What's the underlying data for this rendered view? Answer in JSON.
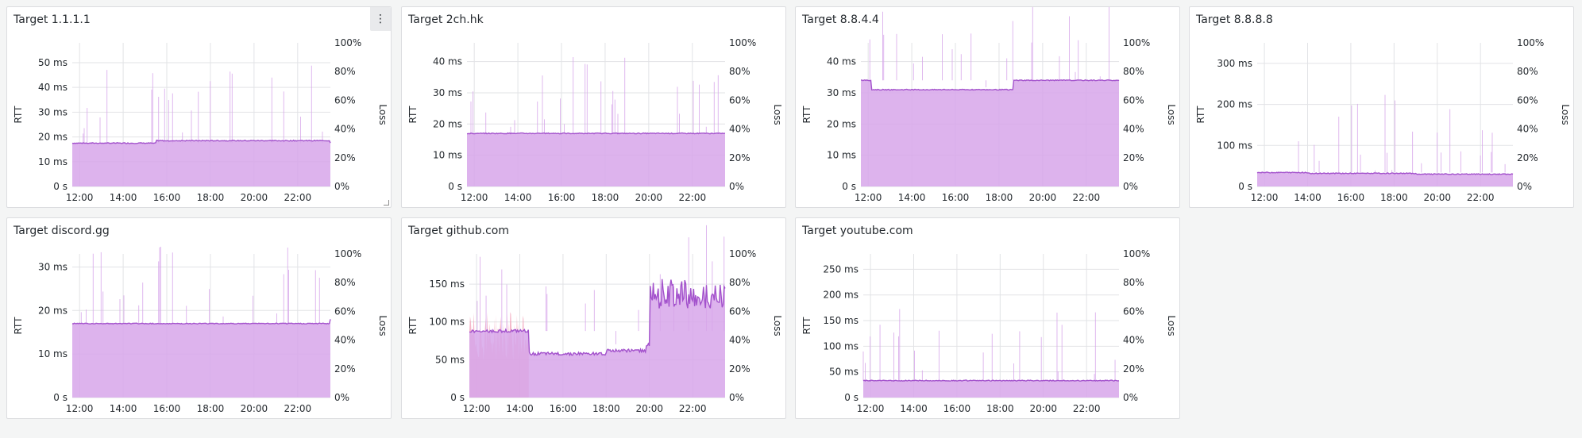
{
  "dashboard": {
    "panels": [
      {
        "title": "Target 1.1.1.1",
        "menu_icon": "⋮",
        "y_label": "RTT",
        "y2_label": "Loss",
        "y_ticks": [
          "0 s",
          "10 ms",
          "20 ms",
          "30 ms",
          "40 ms",
          "50 ms"
        ],
        "y2_ticks": [
          "0%",
          "20%",
          "40%",
          "60%",
          "80%",
          "100%"
        ],
        "x_ticks": [
          "12:00",
          "14:00",
          "16:00",
          "18:00",
          "20:00",
          "22:00"
        ],
        "y_max_ms": 58
      },
      {
        "title": "Target 2ch.hk",
        "y_label": "RTT",
        "y2_label": "Loss",
        "y_ticks": [
          "0 s",
          "10 ms",
          "20 ms",
          "30 ms",
          "40 ms"
        ],
        "y2_ticks": [
          "0%",
          "20%",
          "40%",
          "60%",
          "80%",
          "100%"
        ],
        "x_ticks": [
          "12:00",
          "14:00",
          "16:00",
          "18:00",
          "20:00",
          "22:00"
        ],
        "y_max_ms": 46
      },
      {
        "title": "Target 8.8.4.4",
        "y_label": "RTT",
        "y2_label": "Loss",
        "y_ticks": [
          "0 s",
          "10 ms",
          "20 ms",
          "30 ms",
          "40 ms"
        ],
        "y2_ticks": [
          "0%",
          "20%",
          "40%",
          "60%",
          "80%",
          "100%"
        ],
        "x_ticks": [
          "12:00",
          "14:00",
          "16:00",
          "18:00",
          "20:00",
          "22:00"
        ],
        "y_max_ms": 46
      },
      {
        "title": "Target 8.8.8.8",
        "y_label": "RTT",
        "y2_label": "Loss",
        "y_ticks": [
          "0 s",
          "100 ms",
          "200 ms",
          "300 ms"
        ],
        "y2_ticks": [
          "0%",
          "20%",
          "40%",
          "60%",
          "80%",
          "100%"
        ],
        "x_ticks": [
          "12:00",
          "14:00",
          "16:00",
          "18:00",
          "20:00",
          "22:00"
        ],
        "y_max_ms": 350
      },
      {
        "title": "Target discord.gg",
        "y_label": "RTT",
        "y2_label": "Loss",
        "y_ticks": [
          "0 s",
          "10 ms",
          "20 ms",
          "30 ms"
        ],
        "y2_ticks": [
          "0%",
          "20%",
          "40%",
          "60%",
          "80%",
          "100%"
        ],
        "x_ticks": [
          "12:00",
          "14:00",
          "16:00",
          "18:00",
          "20:00",
          "22:00"
        ],
        "y_max_ms": 33
      },
      {
        "title": "Target github.com",
        "y_label": "RTT",
        "y2_label": "Loss",
        "y_ticks": [
          "0 s",
          "50 ms",
          "100 ms",
          "150 ms"
        ],
        "y2_ticks": [
          "0%",
          "20%",
          "40%",
          "60%",
          "80%",
          "100%"
        ],
        "x_ticks": [
          "12:00",
          "14:00",
          "16:00",
          "18:00",
          "20:00",
          "22:00"
        ],
        "y_max_ms": 190
      },
      {
        "title": "Target youtube.com",
        "y_label": "RTT",
        "y2_label": "Loss",
        "y_ticks": [
          "0 s",
          "50 ms",
          "100 ms",
          "150 ms",
          "200 ms",
          "250 ms"
        ],
        "y2_ticks": [
          "0%",
          "20%",
          "40%",
          "60%",
          "80%",
          "100%"
        ],
        "x_ticks": [
          "12:00",
          "14:00",
          "16:00",
          "18:00",
          "20:00",
          "22:00"
        ],
        "y_max_ms": 280
      }
    ]
  },
  "chart_data": [
    {
      "type": "area",
      "title": "Target 1.1.1.1",
      "x": [
        "11:40",
        "15:00",
        "15:30",
        "23:30"
      ],
      "series": [
        {
          "values": [
            17.5,
            17.5,
            18.5,
            17.5
          ]
        }
      ],
      "ylim_ms": [
        0,
        58
      ],
      "y2lim_pct": [
        0,
        100
      ]
    },
    {
      "type": "area",
      "title": "Target 2ch.hk",
      "x": [
        "11:40",
        "23:30"
      ],
      "series": [
        {
          "values": [
            17,
            17
          ]
        }
      ],
      "ylim_ms": [
        0,
        46
      ],
      "y2lim_pct": [
        0,
        100
      ]
    },
    {
      "type": "area",
      "title": "Target 8.8.4.4",
      "x": [
        "11:40",
        "12:10",
        "18:40",
        "23:30"
      ],
      "series": [
        {
          "values": [
            34,
            31,
            34,
            34
          ]
        }
      ],
      "ylim_ms": [
        0,
        46
      ],
      "y2lim_pct": [
        0,
        100
      ]
    },
    {
      "type": "area",
      "title": "Target 8.8.8.8",
      "x": [
        "11:40",
        "14:00",
        "19:00",
        "23:30"
      ],
      "series": [
        {
          "values": [
            34,
            32,
            30,
            30
          ]
        }
      ],
      "ylim_ms": [
        0,
        350
      ],
      "y2lim_pct": [
        0,
        100
      ]
    },
    {
      "type": "area",
      "title": "Target discord.gg",
      "x": [
        "11:40",
        "21:50",
        "23:30"
      ],
      "series": [
        {
          "values": [
            17,
            17,
            18
          ]
        }
      ],
      "ylim_ms": [
        0,
        33
      ],
      "y2lim_pct": [
        0,
        100
      ]
    },
    {
      "type": "area",
      "title": "Target github.com",
      "x": [
        "11:40",
        "14:20",
        "14:25",
        "18:00",
        "19:50",
        "20:00",
        "23:30"
      ],
      "series": [
        {
          "values": [
            88,
            88,
            58,
            62,
            70,
            125,
            140
          ]
        }
      ],
      "ylim_ms": [
        0,
        190
      ],
      "y2lim_pct": [
        0,
        100
      ]
    },
    {
      "type": "area",
      "title": "Target youtube.com",
      "x": [
        "11:40",
        "23:30"
      ],
      "series": [
        {
          "values": [
            33,
            33
          ]
        }
      ],
      "ylim_ms": [
        0,
        280
      ],
      "y2lim_pct": [
        0,
        100
      ]
    }
  ],
  "colors": {
    "series_fill": "#d7a6ea",
    "series_line": "#a352cc",
    "loss_fill": "#f2a0b8",
    "grid": "#e2e3e6"
  }
}
